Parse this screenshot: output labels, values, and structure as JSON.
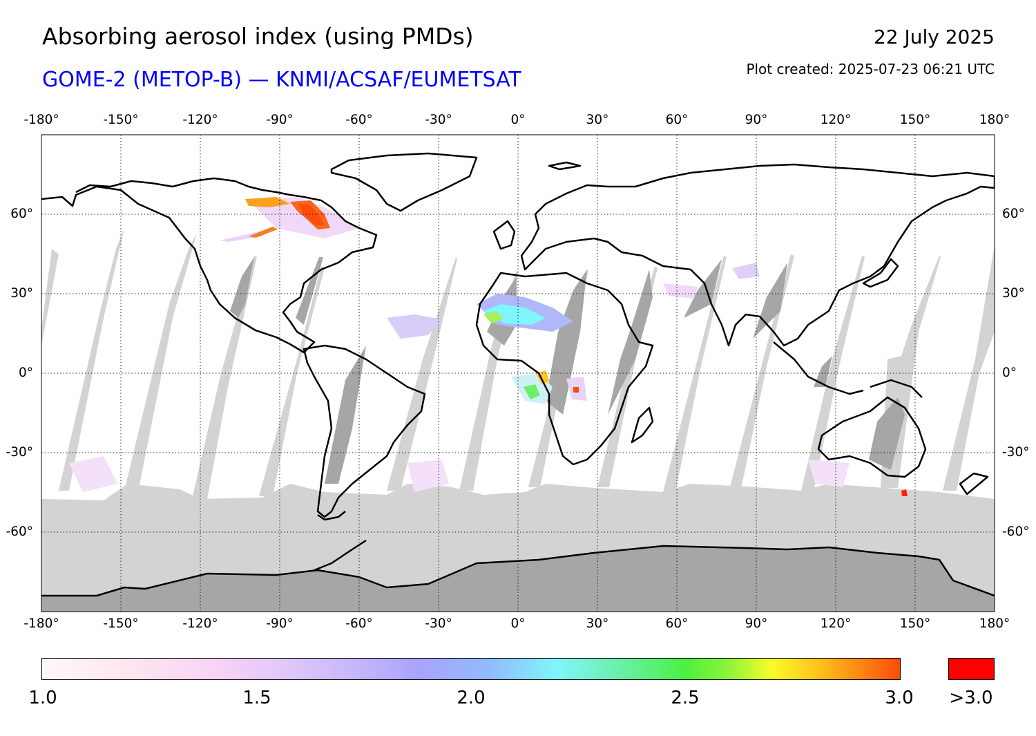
{
  "header": {
    "title": "Absorbing aerosol index (using PMDs)",
    "subtitle": "GOME-2 (METOP-B) — KNMI/ACSAF/EUMETSAT",
    "date": "22 July 2025",
    "plot_created": "Plot created: 2025-07-23 06:21 UTC"
  },
  "map": {
    "projection": "equirectangular",
    "lon_range": [
      -180,
      180
    ],
    "lat_range": [
      -90,
      90
    ],
    "gridlines": "dotted",
    "lon_ticks": [
      "-180°",
      "-150°",
      "-120°",
      "-90°",
      "-60°",
      "-30°",
      "0°",
      "30°",
      "60°",
      "90°",
      "120°",
      "150°",
      "180°"
    ],
    "lat_ticks": [
      "60°",
      "30°",
      "0°",
      "-30°",
      "-60°"
    ],
    "colors": {
      "no_data": "#d3d3d3",
      "land_no_data": "#a6a6a6",
      "background": "#ffffff",
      "coastline": "#000000",
      "over_max": "#ff0000"
    },
    "notable_plumes": [
      {
        "region": "Central Canada",
        "level": ">3.0"
      },
      {
        "region": "Western Sahara / West Africa",
        "level": "2.0-2.8"
      },
      {
        "region": "Central Africa (Gulf of Guinea)",
        "level": "2.0-3.0"
      }
    ]
  },
  "colorbar": {
    "min": 1.0,
    "max": 3.0,
    "labels": [
      "1.0",
      "1.5",
      "2.0",
      "2.5",
      "3.0"
    ],
    "over_label": ">3.0",
    "gradient": [
      "#fff8f8",
      "#f8d4f6",
      "#a8a4fc",
      "#7ff6fc",
      "#4cf040",
      "#f8fc28",
      "#fc4c0a"
    ]
  }
}
